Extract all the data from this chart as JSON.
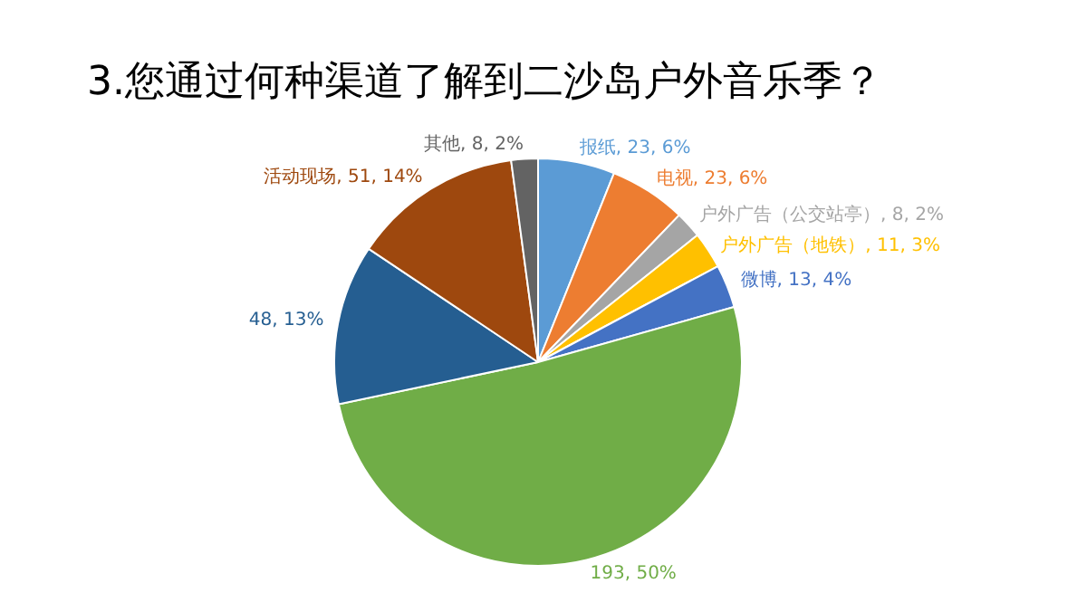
{
  "chart_data": {
    "type": "pie",
    "title": "3.您通过何种渠道了解到二沙岛户外音乐季？",
    "categories": [
      "报纸",
      "电视",
      "户外广告（公交站亭）",
      "户外广告（地铁）",
      "微博",
      null,
      null,
      "活动现场",
      "其他"
    ],
    "values": [
      23,
      23,
      8,
      11,
      13,
      193,
      48,
      51,
      8
    ],
    "value_labels": [
      "23, 6%",
      "23, 6%",
      "8, 2%",
      "11, 3%",
      "13, 4%",
      "193, 50%",
      "48, 13%",
      "51, 14%",
      "8, 2%"
    ],
    "colors": [
      "#5b9bd5",
      "#ed7d31",
      "#a5a5a5",
      "#ffc000",
      "#4472c4",
      "#70ad47",
      "#255e91",
      "#9e480e",
      "#636363"
    ],
    "legend": false
  }
}
